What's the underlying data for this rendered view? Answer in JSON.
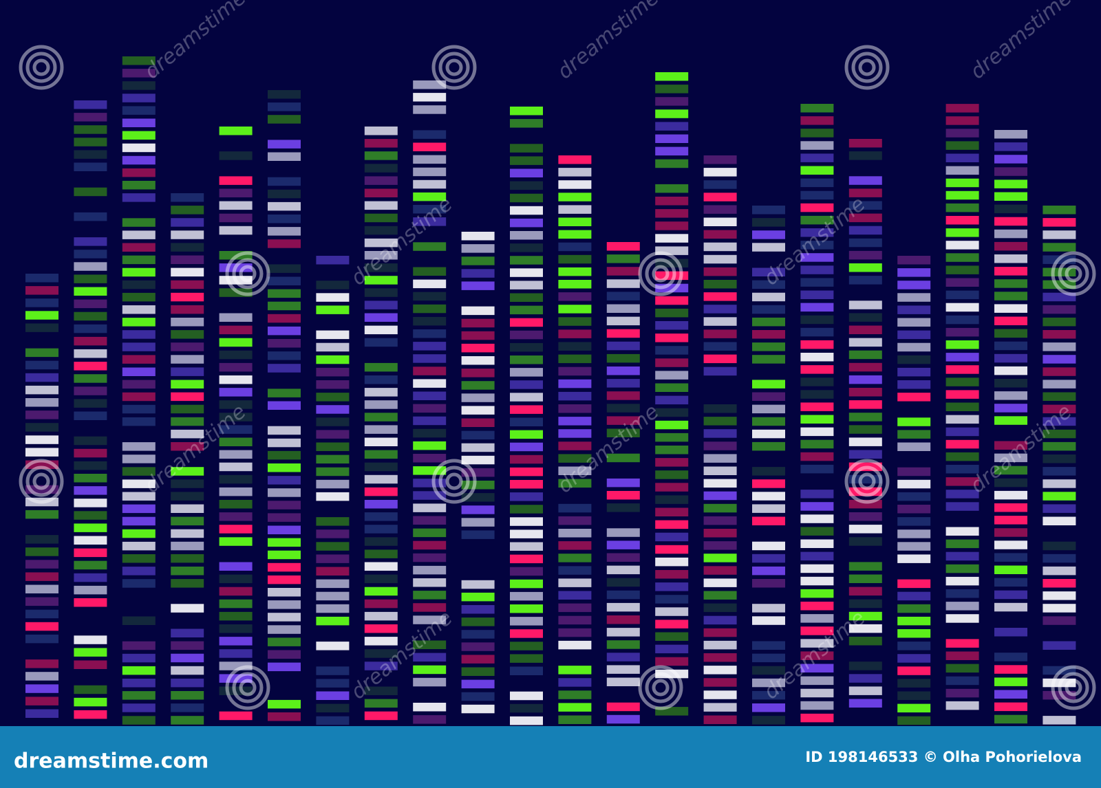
{
  "footer": {
    "site": "dreamstime.com",
    "credit": "ID 198146533 © Olha Pohorielova"
  },
  "watermark": "dreamstime"
}
